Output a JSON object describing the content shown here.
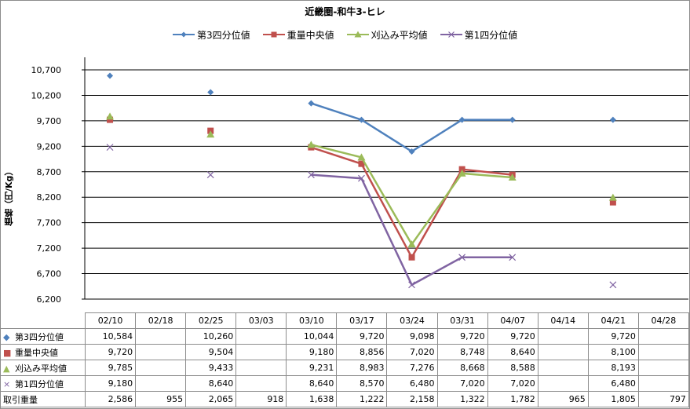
{
  "chart_data": {
    "type": "line",
    "title": "近畿圏-和牛3-ヒレ",
    "ylabel": "価格（円/Kg）",
    "ylim": [
      6200,
      10700
    ],
    "yticks": [
      "6,200",
      "6,700",
      "7,200",
      "7,700",
      "8,200",
      "8,700",
      "9,200",
      "9,700",
      "10,200",
      "10,700"
    ],
    "categories": [
      "02/10",
      "02/18",
      "02/25",
      "03/03",
      "03/10",
      "03/17",
      "03/24",
      "03/31",
      "04/07",
      "04/14",
      "04/21",
      "04/28"
    ],
    "series": [
      {
        "name": "第3四分位値",
        "color": "#4f81bd",
        "marker": "diamond",
        "values": [
          10584,
          null,
          10260,
          null,
          10044,
          9720,
          9098,
          9720,
          9720,
          null,
          9720,
          null
        ]
      },
      {
        "name": "重量中央値",
        "color": "#c0504d",
        "marker": "square",
        "values": [
          9720,
          null,
          9504,
          null,
          9180,
          8856,
          7020,
          8748,
          8640,
          null,
          8100,
          null
        ]
      },
      {
        "name": "刈込み平均値",
        "color": "#9bbb59",
        "marker": "triangle",
        "values": [
          9785,
          null,
          9433,
          null,
          9231,
          8983,
          7276,
          8668,
          8588,
          null,
          8193,
          null
        ]
      },
      {
        "name": "第1四分位値",
        "color": "#8064a2",
        "marker": "x",
        "values": [
          9180,
          null,
          8640,
          null,
          8640,
          8570,
          6480,
          7020,
          7020,
          null,
          6480,
          null
        ]
      }
    ],
    "table": {
      "rows": [
        {
          "label": "第3四分位値",
          "marker": "diamond",
          "color": "#4f81bd",
          "cells": [
            "10,584",
            "",
            "10,260",
            "",
            "10,044",
            "9,720",
            "9,098",
            "9,720",
            "9,720",
            "",
            "9,720",
            ""
          ]
        },
        {
          "label": "重量中央値",
          "marker": "square",
          "color": "#c0504d",
          "cells": [
            "9,720",
            "",
            "9,504",
            "",
            "9,180",
            "8,856",
            "7,020",
            "8,748",
            "8,640",
            "",
            "8,100",
            ""
          ]
        },
        {
          "label": "刈込み平均値",
          "marker": "triangle",
          "color": "#9bbb59",
          "cells": [
            "9,785",
            "",
            "9,433",
            "",
            "9,231",
            "8,983",
            "7,276",
            "8,668",
            "8,588",
            "",
            "8,193",
            ""
          ]
        },
        {
          "label": "第1四分位値",
          "marker": "x",
          "color": "#8064a2",
          "cells": [
            "9,180",
            "",
            "8,640",
            "",
            "8,640",
            "8,570",
            "6,480",
            "7,020",
            "7,020",
            "",
            "6,480",
            ""
          ]
        },
        {
          "label": "取引重量",
          "marker": "",
          "cells": [
            "2,586",
            "955",
            "2,065",
            "918",
            "1,638",
            "1,222",
            "2,158",
            "1,322",
            "1,782",
            "965",
            "1,805",
            "797"
          ]
        }
      ]
    },
    "grid": "horizontal",
    "legend_position": "top"
  }
}
